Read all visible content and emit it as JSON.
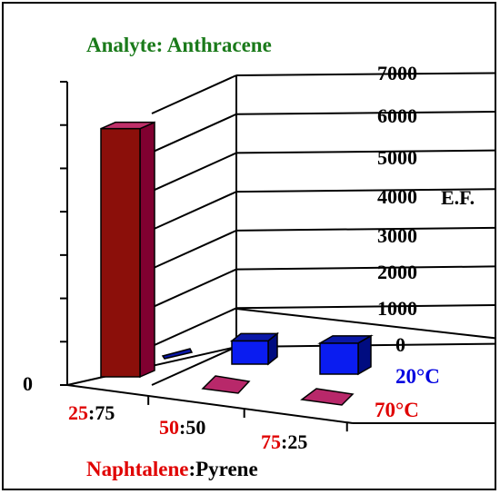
{
  "chart_data": {
    "type": "bar",
    "title": "Analyte: Anthracene",
    "categories": [
      {
        "num": "25",
        "sep": ":",
        "den": "75"
      },
      {
        "num": "50",
        "sep": ":",
        "den": "50"
      },
      {
        "num": "75",
        "sep": ":",
        "den": "25"
      }
    ],
    "xlabel": {
      "part1": "Naphtalene",
      "sep": ":",
      "part2": "Pyrene"
    },
    "ylabel": "E.F.",
    "ylim": [
      0,
      7000
    ],
    "yticks": [
      "7000",
      "6000",
      "5000",
      "4000",
      "3000",
      "2000",
      "1000",
      "0"
    ],
    "series": [
      {
        "name": "70°C",
        "values": [
          6400,
          30,
          30
        ]
      },
      {
        "name": "20°C",
        "values": [
          30,
          600,
          800
        ]
      }
    ],
    "front_zero_label": "0",
    "colors": {
      "title": "#1a7a1a",
      "series_20_front": "#0a1cf0",
      "series_20_top": "#0a18a8",
      "series_20_side": "#000c80",
      "series_70_front_tall": "#8b0f0a",
      "series_70_side_tall": "#800030",
      "series_70_top_tall": "#c0306a",
      "series_70_flat": "#b8286a",
      "label_red": "#e00000",
      "label_blue": "#0000e0"
    }
  }
}
